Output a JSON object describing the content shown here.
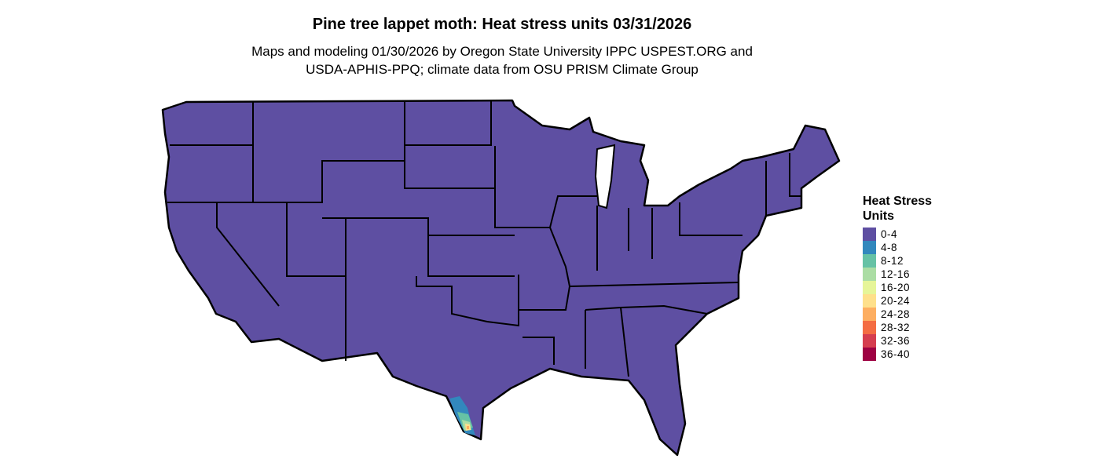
{
  "title": "Pine tree lappet moth: Heat stress units 03/31/2026",
  "subtitle_line1": "Maps and modeling 01/30/2026 by Oregon State University IPPC USPEST.ORG and",
  "subtitle_line2": "USDA-APHIS-PPQ; climate data from OSU PRISM Climate Group",
  "legend": {
    "title": "Heat Stress Units",
    "items": [
      {
        "label": "0-4",
        "color": "#5e4fa2"
      },
      {
        "label": "4-8",
        "color": "#3288bd"
      },
      {
        "label": "8-12",
        "color": "#66c2a5"
      },
      {
        "label": "12-16",
        "color": "#abdda4"
      },
      {
        "label": "16-20",
        "color": "#e6f598"
      },
      {
        "label": "20-24",
        "color": "#fee08b"
      },
      {
        "label": "24-28",
        "color": "#fdae61"
      },
      {
        "label": "28-32",
        "color": "#f46d43"
      },
      {
        "label": "32-36",
        "color": "#d53e4f"
      },
      {
        "label": "36-40",
        "color": "#9e0142"
      }
    ]
  },
  "map": {
    "region": "contiguous-united-states",
    "dominant_class": "0-4",
    "hotspot": "south-texas"
  }
}
